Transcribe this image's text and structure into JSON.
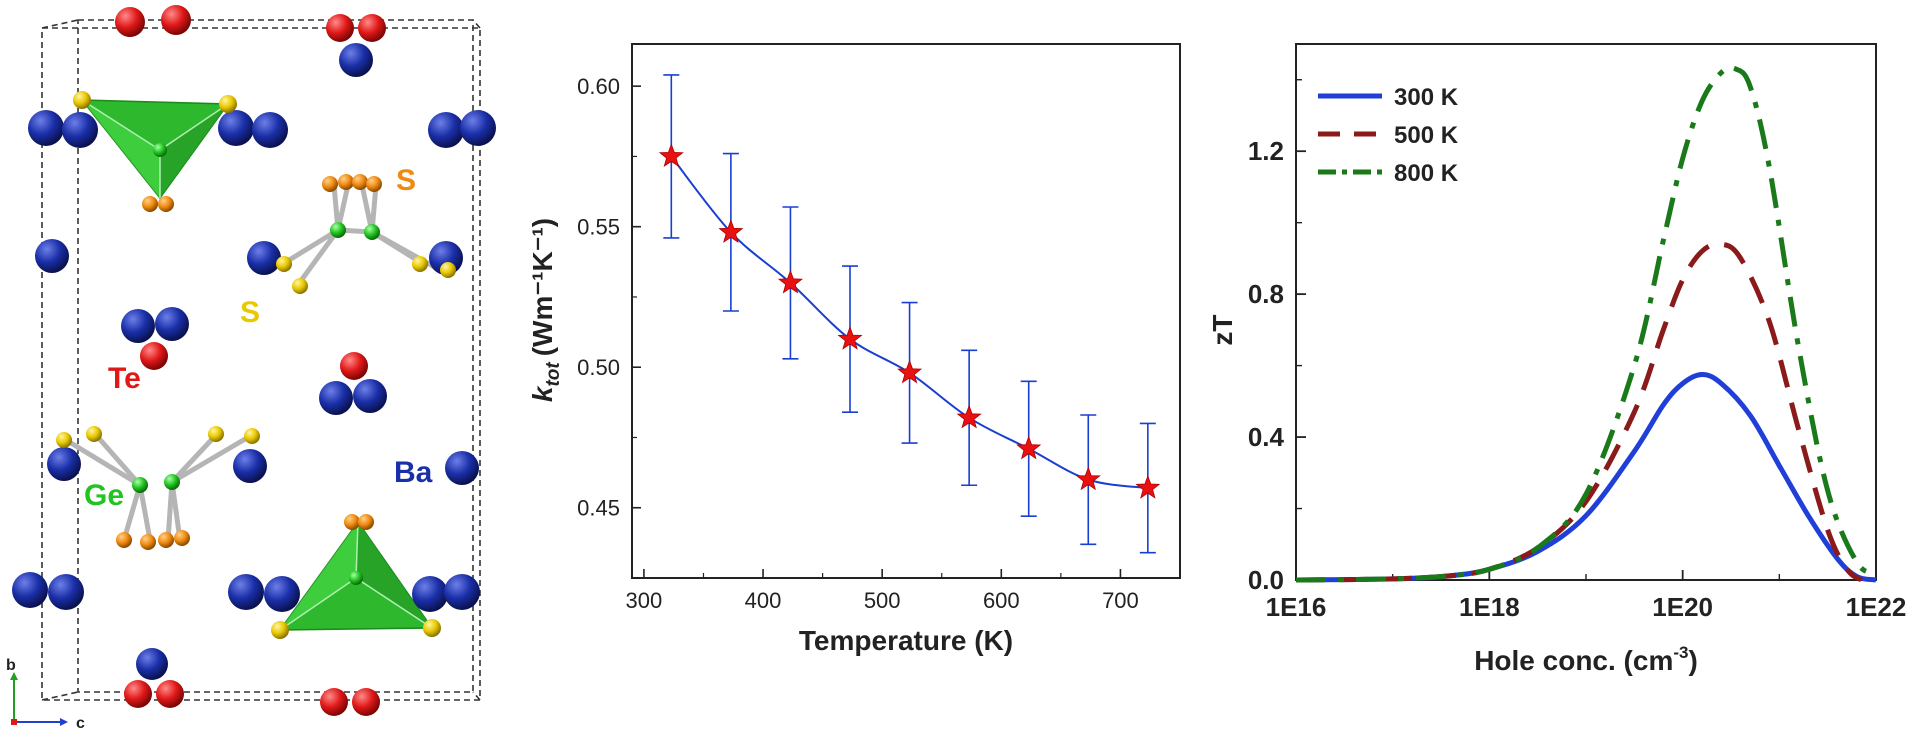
{
  "structure": {
    "labels": {
      "te": "Te",
      "s_top": "S",
      "s_left": "S",
      "ge": "Ge",
      "ba": "Ba",
      "axis_b": "b",
      "axis_c": "c"
    },
    "colors": {
      "ba": "#1a2fa8",
      "te": "#e01818",
      "s": "#e8c800",
      "s_orange": "#f08a10",
      "ge": "#22c422",
      "polyhedron": "#2eb82e",
      "te_label": "#e01818",
      "s_label_top": "#f08a10",
      "s_label_left": "#e8c800",
      "ge_label": "#22c422",
      "ba_label": "#1a2fa8"
    }
  },
  "chart_data": [
    {
      "type": "scatter",
      "ylabel_main": "k",
      "ylabel_sub": "tot",
      "ylabel_unit": "(Wm⁻¹K⁻¹)",
      "xlabel": "Temperature (K)",
      "xlim": [
        290,
        750
      ],
      "ylim": [
        0.425,
        0.615
      ],
      "xticks": [
        300,
        400,
        500,
        600,
        700
      ],
      "yticks": [
        "0.45",
        "0.50",
        "0.55",
        "0.60"
      ],
      "ytick_values": [
        0.45,
        0.5,
        0.55,
        0.6
      ],
      "marker": "star",
      "marker_color": "#e81010",
      "line_color": "#1a3fd0",
      "grid": false,
      "points": [
        {
          "x": 323,
          "y": 0.575,
          "err": 0.029
        },
        {
          "x": 373,
          "y": 0.548,
          "err": 0.028
        },
        {
          "x": 423,
          "y": 0.53,
          "err": 0.027
        },
        {
          "x": 473,
          "y": 0.51,
          "err": 0.026
        },
        {
          "x": 523,
          "y": 0.498,
          "err": 0.025
        },
        {
          "x": 573,
          "y": 0.482,
          "err": 0.024
        },
        {
          "x": 623,
          "y": 0.471,
          "err": 0.024
        },
        {
          "x": 673,
          "y": 0.46,
          "err": 0.023
        },
        {
          "x": 723,
          "y": 0.457,
          "err": 0.023
        }
      ]
    },
    {
      "type": "line",
      "ylabel": "zT",
      "xlabel_main": "Hole conc. (cm",
      "xlabel_sup": "-3",
      "xlabel_end": ")",
      "xscale": "log",
      "xlim_log10": [
        16,
        22
      ],
      "ylim": [
        0,
        1.5
      ],
      "xticks": [
        "1E16",
        "1E18",
        "1E20",
        "1E22"
      ],
      "xtick_log10": [
        16,
        18,
        20,
        22
      ],
      "yticks": [
        "0.0",
        "0.4",
        "0.8",
        "1.2"
      ],
      "ytick_values": [
        0,
        0.4,
        0.8,
        1.2
      ],
      "legend_position": "top-left",
      "grid": false,
      "series": [
        {
          "name": "300 K",
          "color": "#1f3fd8",
          "dash": "solid",
          "x_log10": [
            16,
            17,
            17.6,
            18,
            18.5,
            19,
            19.5,
            19.8,
            20,
            20.2,
            20.4,
            20.7,
            21,
            21.3,
            21.6,
            21.8,
            22
          ],
          "y": [
            0,
            0.003,
            0.012,
            0.03,
            0.08,
            0.18,
            0.36,
            0.49,
            0.55,
            0.575,
            0.55,
            0.46,
            0.32,
            0.18,
            0.06,
            0.01,
            0.0
          ]
        },
        {
          "name": "500 K",
          "color": "#8b1a1a",
          "dash": "dash",
          "x_log10": [
            16,
            17,
            17.6,
            18,
            18.5,
            19,
            19.5,
            19.8,
            20,
            20.2,
            20.4,
            20.6,
            20.9,
            21.2,
            21.5,
            21.7,
            21.85
          ],
          "y": [
            0,
            0.003,
            0.012,
            0.03,
            0.09,
            0.22,
            0.47,
            0.7,
            0.84,
            0.92,
            0.94,
            0.9,
            0.72,
            0.42,
            0.14,
            0.03,
            0.0
          ]
        },
        {
          "name": "800 K",
          "color": "#1a7a1a",
          "dash": "dashdot",
          "x_log10": [
            16,
            17,
            17.6,
            18,
            18.5,
            19,
            19.5,
            19.8,
            20,
            20.2,
            20.4,
            20.55,
            20.7,
            20.9,
            21.2,
            21.5,
            21.8,
            22
          ],
          "y": [
            0,
            0.003,
            0.012,
            0.03,
            0.09,
            0.24,
            0.6,
            0.95,
            1.18,
            1.34,
            1.42,
            1.43,
            1.38,
            1.15,
            0.65,
            0.25,
            0.05,
            0.02
          ]
        }
      ]
    }
  ]
}
